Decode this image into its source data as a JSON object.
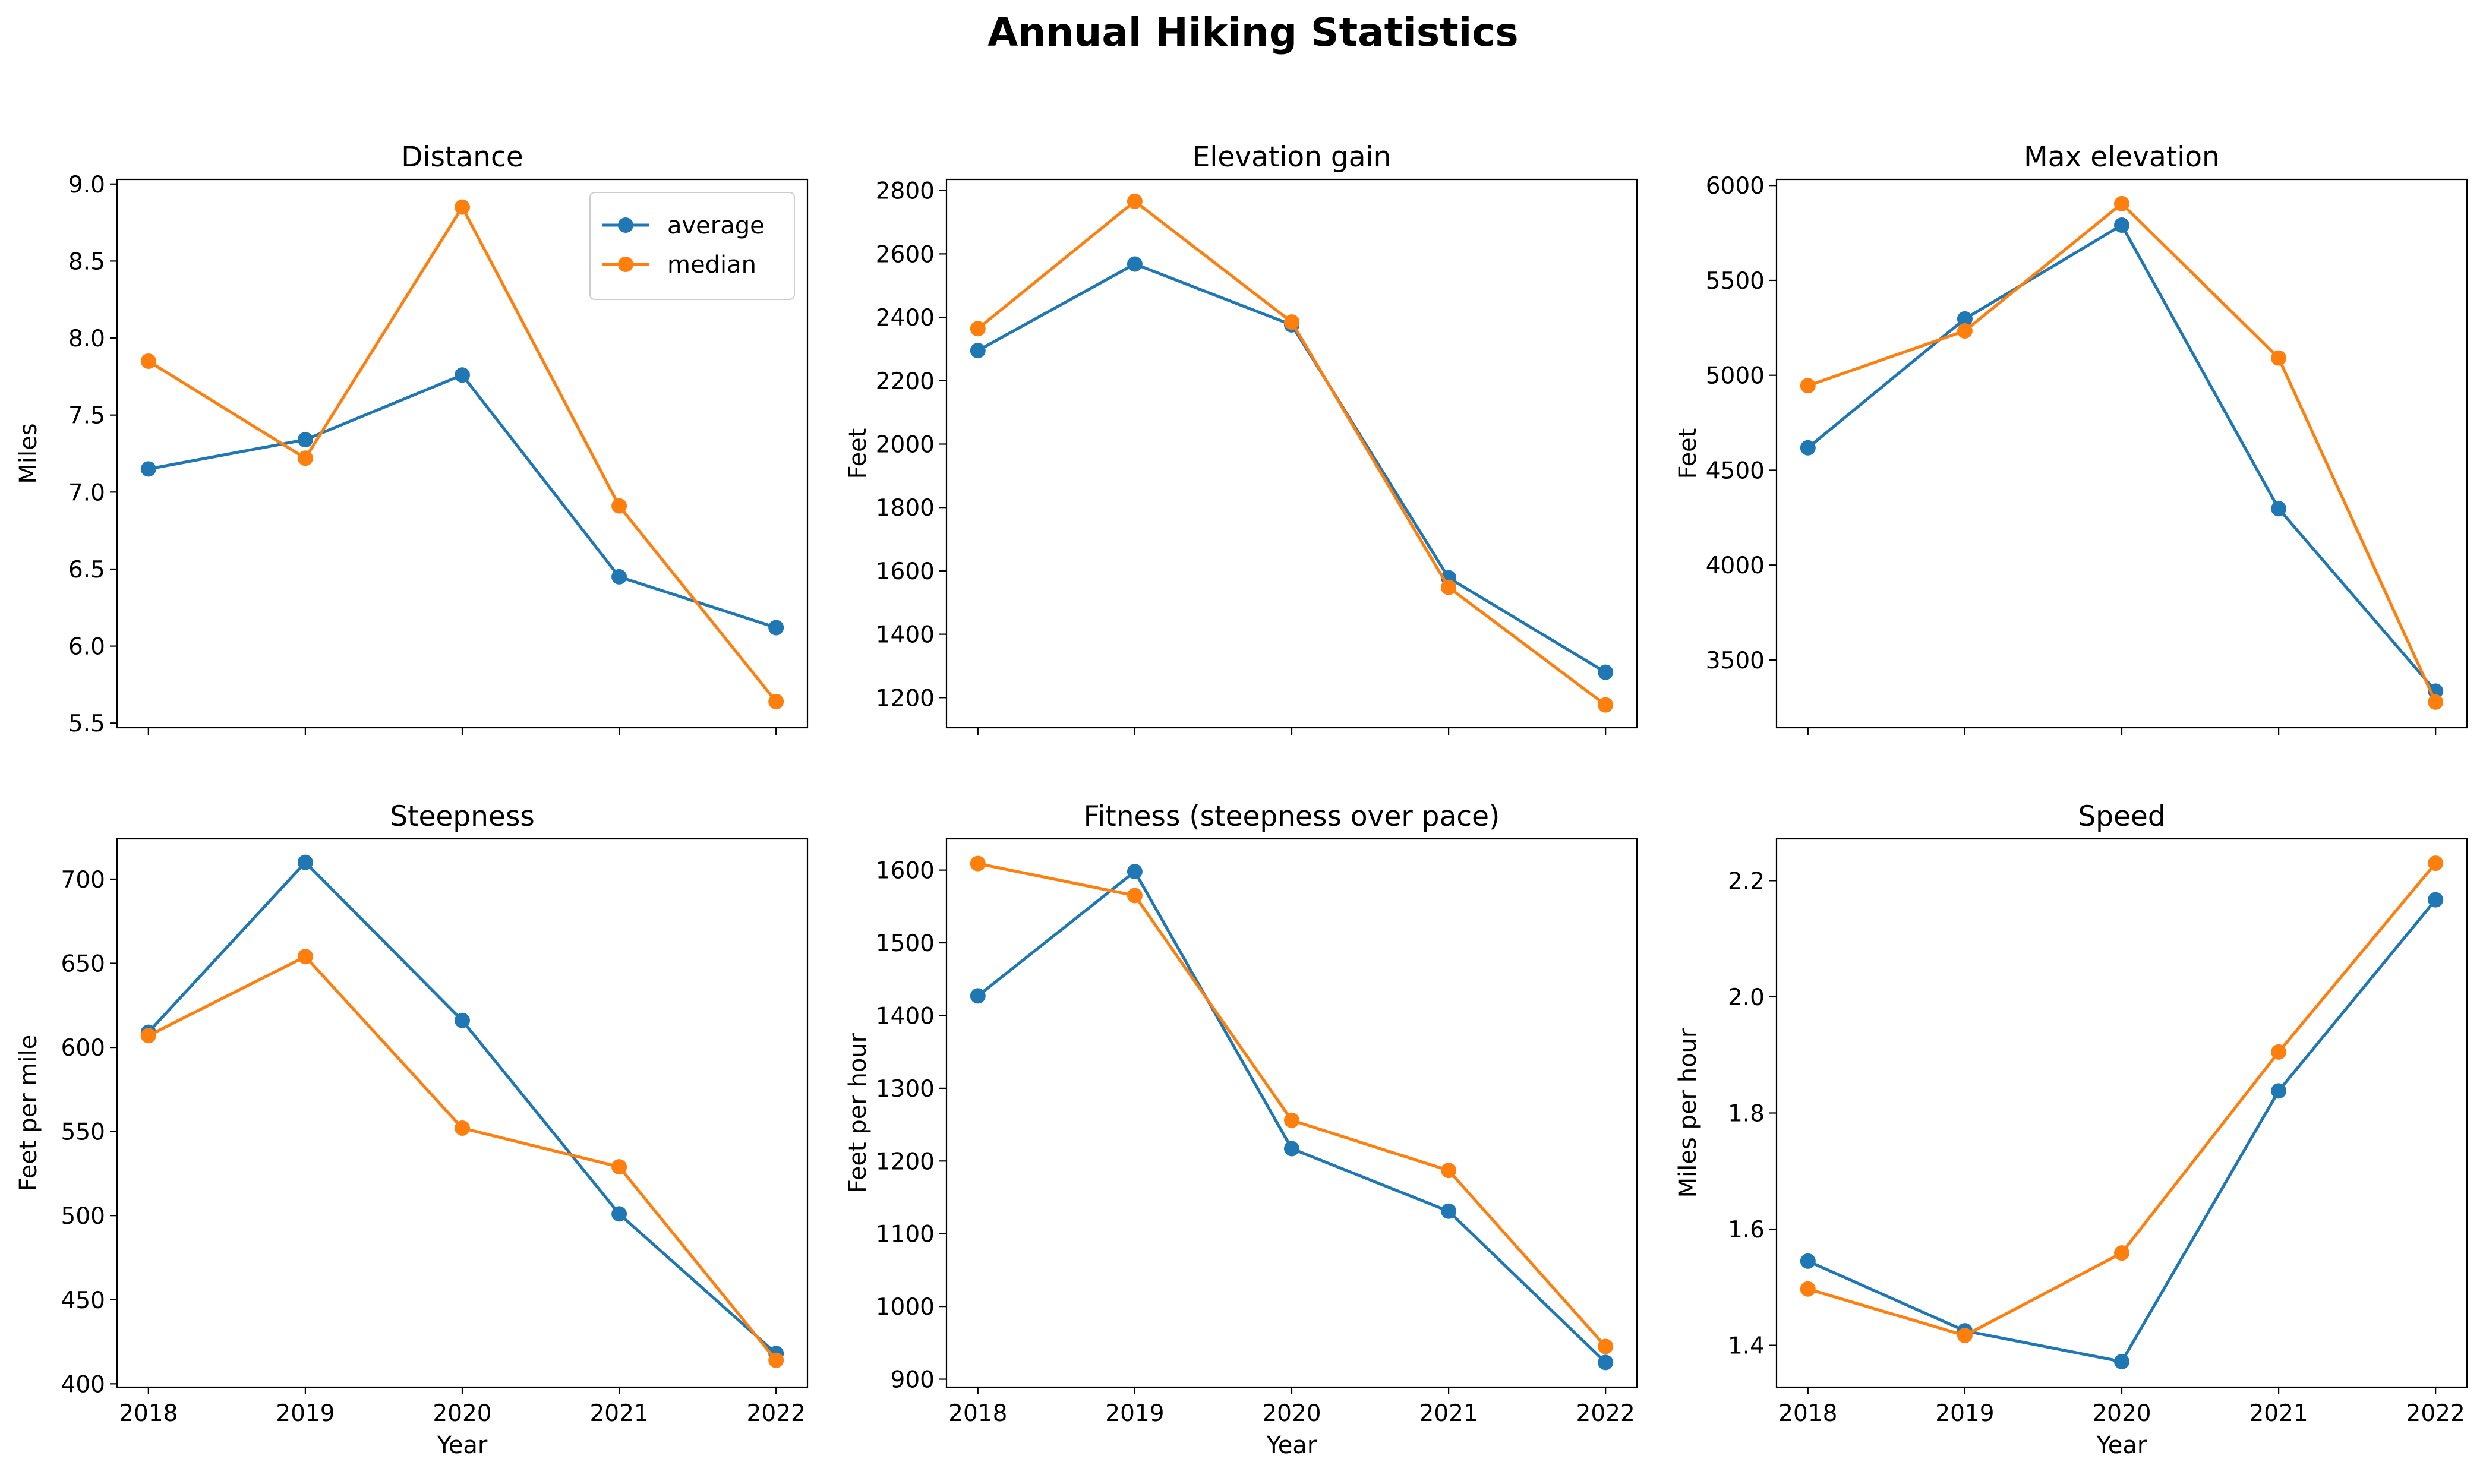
{
  "figure": {
    "title": "Annual Hiking Statistics"
  },
  "legend": {
    "items": [
      "average",
      "median"
    ]
  },
  "colors": {
    "average": "#1f77b4",
    "median": "#ff7f0e"
  },
  "chart_data": [
    {
      "type": "line",
      "title": "Distance",
      "xlabel": "",
      "ylabel": "Miles",
      "x": [
        2018,
        2019,
        2020,
        2021,
        2022
      ],
      "xticks": [
        2018,
        2019,
        2020,
        2021,
        2022
      ],
      "show_xticklabels": false,
      "ylim": [
        5.47,
        9.03
      ],
      "yticks": [
        5.5,
        6.0,
        6.5,
        7.0,
        7.5,
        8.0,
        8.5,
        9.0
      ],
      "ytick_labels": [
        "5.5",
        "6.0",
        "6.5",
        "7.0",
        "7.5",
        "8.0",
        "8.5",
        "9.0"
      ],
      "legend": "top-right",
      "series": [
        {
          "name": "average",
          "color": "#1f77b4",
          "values": [
            7.15,
            7.34,
            7.76,
            6.45,
            6.12
          ]
        },
        {
          "name": "median",
          "color": "#ff7f0e",
          "values": [
            7.85,
            7.22,
            8.85,
            6.91,
            5.64
          ]
        }
      ]
    },
    {
      "type": "line",
      "title": "Elevation gain",
      "xlabel": "",
      "ylabel": "Feet",
      "x": [
        2018,
        2019,
        2020,
        2021,
        2022
      ],
      "xticks": [
        2018,
        2019,
        2020,
        2021,
        2022
      ],
      "show_xticklabels": false,
      "ylim": [
        1105,
        2835
      ],
      "yticks": [
        1200,
        1400,
        1600,
        1800,
        2000,
        2200,
        2400,
        2600,
        2800
      ],
      "ytick_labels": [
        "1200",
        "1400",
        "1600",
        "1800",
        "2000",
        "2200",
        "2400",
        "2600",
        "2800"
      ],
      "series": [
        {
          "name": "average",
          "color": "#1f77b4",
          "values": [
            2295,
            2568,
            2376,
            1578,
            1280
          ]
        },
        {
          "name": "median",
          "color": "#ff7f0e",
          "values": [
            2364,
            2766,
            2385,
            1548,
            1177
          ]
        }
      ]
    },
    {
      "type": "line",
      "title": "Max elevation",
      "xlabel": "",
      "ylabel": "Feet",
      "x": [
        2018,
        2019,
        2020,
        2021,
        2022
      ],
      "xticks": [
        2018,
        2019,
        2020,
        2021,
        2022
      ],
      "show_xticklabels": false,
      "ylim": [
        3143,
        6032
      ],
      "yticks": [
        3500,
        4000,
        4500,
        5000,
        5500,
        6000
      ],
      "ytick_labels": [
        "3500",
        "4000",
        "4500",
        "5000",
        "5500",
        "6000"
      ],
      "series": [
        {
          "name": "average",
          "color": "#1f77b4",
          "values": [
            4618,
            5297,
            5791,
            4297,
            3336
          ]
        },
        {
          "name": "median",
          "color": "#ff7f0e",
          "values": [
            4945,
            5234,
            5904,
            5091,
            3278
          ]
        }
      ]
    },
    {
      "type": "line",
      "title": "Steepness",
      "xlabel": "Year",
      "ylabel": "Feet per mile",
      "x": [
        2018,
        2019,
        2020,
        2021,
        2022
      ],
      "xticks": [
        2018,
        2019,
        2020,
        2021,
        2022
      ],
      "show_xticklabels": true,
      "ylim": [
        398,
        724
      ],
      "yticks": [
        400,
        450,
        500,
        550,
        600,
        650,
        700
      ],
      "ytick_labels": [
        "400",
        "450",
        "500",
        "550",
        "600",
        "650",
        "700"
      ],
      "series": [
        {
          "name": "average",
          "color": "#1f77b4",
          "values": [
            609,
            710,
            616,
            501,
            418
          ]
        },
        {
          "name": "median",
          "color": "#ff7f0e",
          "values": [
            607,
            654,
            552,
            529,
            414
          ]
        }
      ]
    },
    {
      "type": "line",
      "title": "Fitness (steepness over pace)",
      "xlabel": "Year",
      "ylabel": "Feet per hour",
      "x": [
        2018,
        2019,
        2020,
        2021,
        2022
      ],
      "xticks": [
        2018,
        2019,
        2020,
        2021,
        2022
      ],
      "show_xticklabels": true,
      "ylim": [
        889,
        1643
      ],
      "yticks": [
        900,
        1000,
        1100,
        1200,
        1300,
        1400,
        1500,
        1600
      ],
      "ytick_labels": [
        "900",
        "1000",
        "1100",
        "1200",
        "1300",
        "1400",
        "1500",
        "1600"
      ],
      "series": [
        {
          "name": "average",
          "color": "#1f77b4",
          "values": [
            1427,
            1598,
            1217,
            1131,
            923
          ]
        },
        {
          "name": "median",
          "color": "#ff7f0e",
          "values": [
            1609,
            1565,
            1256,
            1187,
            945
          ]
        }
      ]
    },
    {
      "type": "line",
      "title": "Speed",
      "xlabel": "Year",
      "ylabel": "Miles per hour",
      "x": [
        2018,
        2019,
        2020,
        2021,
        2022
      ],
      "xticks": [
        2018,
        2019,
        2020,
        2021,
        2022
      ],
      "show_xticklabels": true,
      "ylim": [
        1.328,
        2.272
      ],
      "yticks": [
        1.4,
        1.6,
        1.8,
        2.0,
        2.2
      ],
      "ytick_labels": [
        "1.4",
        "1.6",
        "1.8",
        "2.0",
        "2.2"
      ],
      "series": [
        {
          "name": "average",
          "color": "#1f77b4",
          "values": [
            1.545,
            1.425,
            1.372,
            1.838,
            2.167
          ]
        },
        {
          "name": "median",
          "color": "#ff7f0e",
          "values": [
            1.497,
            1.417,
            1.559,
            1.905,
            2.23
          ]
        }
      ]
    }
  ]
}
